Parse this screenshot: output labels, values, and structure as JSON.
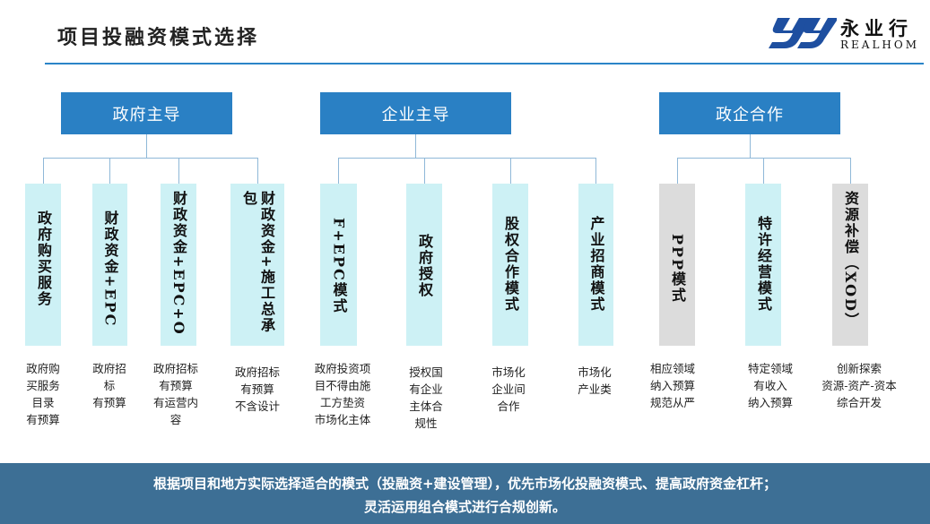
{
  "title": "项目投融资模式选择",
  "logo": {
    "cn": "永业行",
    "en": "REALHOM",
    "color": "#1e4fa0"
  },
  "colors": {
    "header": "#2a80c4",
    "box": "#cdf1f5",
    "box_gray": "#dcdcdc",
    "footer": "#3d6f95"
  },
  "groups": [
    {
      "label": "政府主导"
    },
    {
      "label": "企业主导"
    },
    {
      "label": "政企合作"
    }
  ],
  "modes": [
    {
      "label": "政府购买服务",
      "desc": [
        "政府购",
        "买服务",
        "目录",
        "有预算"
      ]
    },
    {
      "label": "财政资金+EPC",
      "desc": [
        "政府招",
        "标",
        "有预算"
      ]
    },
    {
      "label": "财政资金+EPC+O",
      "desc": [
        "政府招标",
        "有预算",
        "有运营内",
        "容"
      ]
    },
    {
      "label": "财政资金+施工总承包",
      "desc": [
        "政府招标",
        "有预算",
        "不含设计"
      ]
    },
    {
      "label": "F+EPC模式",
      "desc": [
        "政府投资项",
        "目不得由施",
        "工方垫资",
        "市场化主体"
      ]
    },
    {
      "label": "政府授权",
      "desc": [
        "授权国",
        "有企业",
        "主体合",
        "规性"
      ]
    },
    {
      "label": "股权合作模式",
      "desc": [
        "市场化",
        "企业间",
        "合作"
      ]
    },
    {
      "label": "产业招商模式",
      "desc": [
        "市场化",
        "产业类"
      ]
    },
    {
      "label": "PPP模式",
      "desc": [
        "相应领域",
        "纳入预算",
        "规范从严"
      ]
    },
    {
      "label": "特许经营模式",
      "desc": [
        "特定领域",
        "有收入",
        "纳入预算"
      ]
    },
    {
      "label": "资源补偿（XOD）",
      "desc": [
        "创新探索",
        "资源-资产-资本",
        "综合开发"
      ]
    }
  ],
  "footer": [
    "根据项目和地方实际选择适合的模式（投融资+建设管理），优先市场化投融资模式、提高政府资金杠杆；",
    "灵活运用组合模式进行合规创新。"
  ]
}
